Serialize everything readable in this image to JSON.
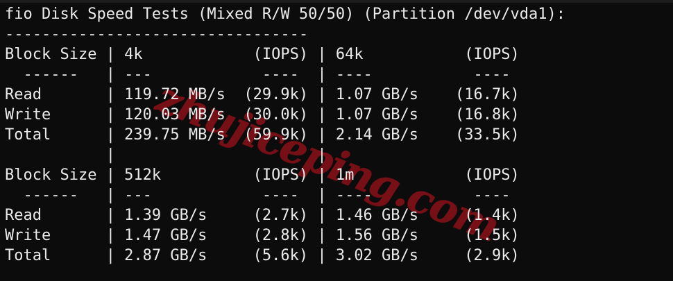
{
  "colors": {
    "background": "#0c0c0c",
    "text": "#ebebeb",
    "watermark_red": "#7c1117"
  },
  "watermark": {
    "text": "zhujiceping.com"
  },
  "terminal": {
    "lines": [
      "fio Disk Speed Tests (Mixed R/W 50/50) (Partition /dev/vda1):",
      "---------------------------------",
      "Block Size | 4k            (IOPS) | 64k           (IOPS)",
      "  ------   | ---            ----  | ----           ---- ",
      "Read       | 119.72 MB/s  (29.9k) | 1.07 GB/s    (16.7k)",
      "Write      | 120.03 MB/s  (30.0k) | 1.07 GB/s    (16.8k)",
      "Total      | 239.75 MB/s  (59.9k) | 2.14 GB/s    (33.5k)",
      "           |                      |                     ",
      "Block Size | 512k          (IOPS) | 1m            (IOPS)",
      "  ------   | ---            ----  | ----           ---- ",
      "Read       | 1.39 GB/s     (2.7k) | 1.46 GB/s     (1.4k)",
      "Write      | 1.47 GB/s     (2.8k) | 1.56 GB/s     (1.5k)",
      "Total      | 2.87 GB/s     (5.6k) | 3.02 GB/s     (2.9k)"
    ]
  },
  "disk_tests": {
    "title": "fio Disk Speed Tests (Mixed R/W 50/50) (Partition /dev/vda1):",
    "tables": [
      {
        "columns": [
          "Block Size",
          "4k",
          "(IOPS)",
          "64k",
          "(IOPS)"
        ],
        "rows": [
          {
            "label": "Read",
            "speed_a": "119.72 MB/s",
            "iops_a": "29.9k",
            "speed_b": "1.07 GB/s",
            "iops_b": "16.7k"
          },
          {
            "label": "Write",
            "speed_a": "120.03 MB/s",
            "iops_a": "30.0k",
            "speed_b": "1.07 GB/s",
            "iops_b": "16.8k"
          },
          {
            "label": "Total",
            "speed_a": "239.75 MB/s",
            "iops_a": "59.9k",
            "speed_b": "2.14 GB/s",
            "iops_b": "33.5k"
          }
        ]
      },
      {
        "columns": [
          "Block Size",
          "512k",
          "(IOPS)",
          "1m",
          "(IOPS)"
        ],
        "rows": [
          {
            "label": "Read",
            "speed_a": "1.39 GB/s",
            "iops_a": "2.7k",
            "speed_b": "1.46 GB/s",
            "iops_b": "1.4k"
          },
          {
            "label": "Write",
            "speed_a": "1.47 GB/s",
            "iops_a": "2.8k",
            "speed_b": "1.56 GB/s",
            "iops_b": "1.5k"
          },
          {
            "label": "Total",
            "speed_a": "2.87 GB/s",
            "iops_a": "5.6k",
            "speed_b": "3.02 GB/s",
            "iops_b": "2.9k"
          }
        ]
      }
    ]
  }
}
